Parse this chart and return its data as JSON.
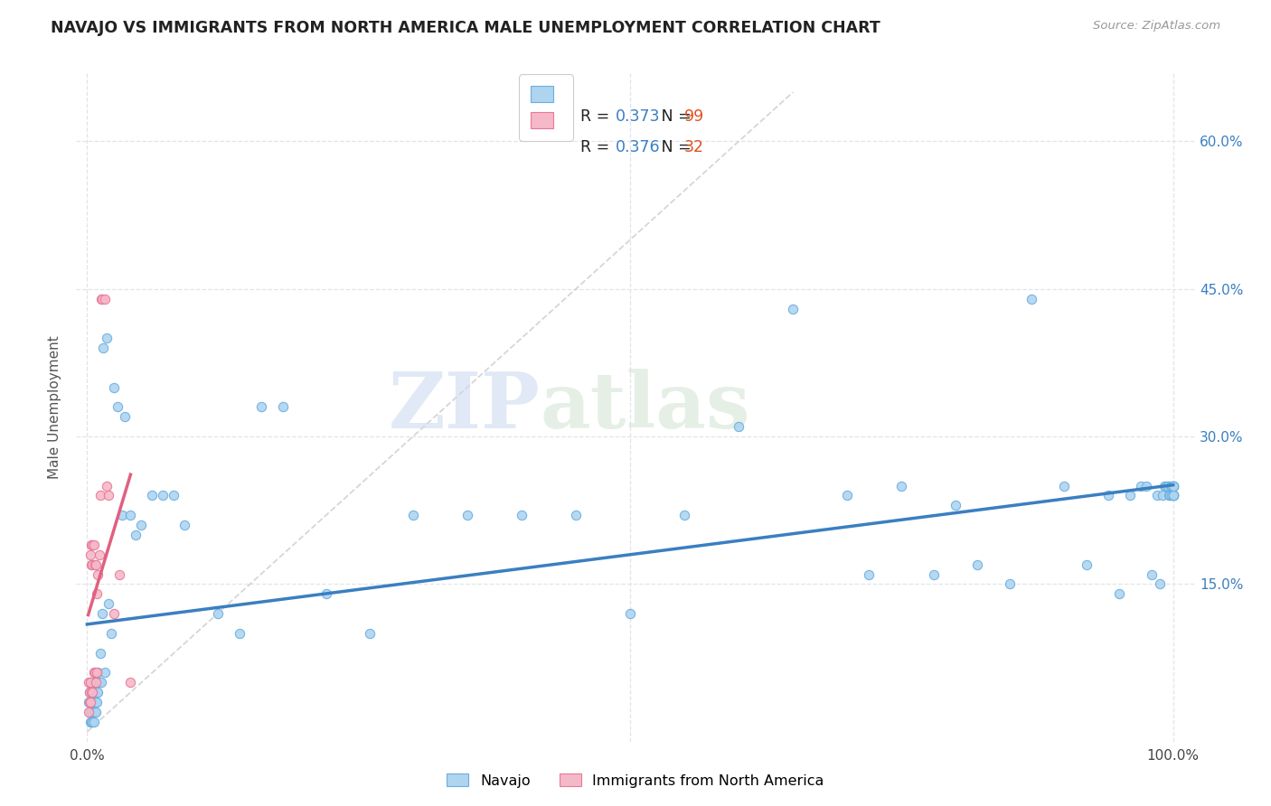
{
  "title": "NAVAJO VS IMMIGRANTS FROM NORTH AMERICA MALE UNEMPLOYMENT CORRELATION CHART",
  "source": "Source: ZipAtlas.com",
  "ylabel": "Male Unemployment",
  "watermark_zip": "ZIP",
  "watermark_atlas": "atlas",
  "navajo_R": 0.373,
  "navajo_N": 99,
  "immig_R": 0.376,
  "immig_N": 32,
  "navajo_color": "#aed4f0",
  "navajo_edge": "#6aaee0",
  "immig_color": "#f5b8c8",
  "immig_edge": "#e87898",
  "navajo_line_color": "#3a7fc1",
  "immig_line_color": "#e06080",
  "diagonal_color": "#cccccc",
  "background_color": "#ffffff",
  "grid_color": "#e0e4ea",
  "navajo_x": [
    0.001,
    0.002,
    0.002,
    0.003,
    0.003,
    0.003,
    0.003,
    0.004,
    0.004,
    0.004,
    0.004,
    0.005,
    0.005,
    0.005,
    0.005,
    0.006,
    0.006,
    0.006,
    0.006,
    0.007,
    0.007,
    0.007,
    0.008,
    0.008,
    0.008,
    0.009,
    0.009,
    0.01,
    0.01,
    0.011,
    0.012,
    0.013,
    0.014,
    0.015,
    0.016,
    0.018,
    0.02,
    0.022,
    0.025,
    0.028,
    0.032,
    0.035,
    0.04,
    0.045,
    0.05,
    0.06,
    0.07,
    0.08,
    0.09,
    0.12,
    0.14,
    0.16,
    0.18,
    0.22,
    0.26,
    0.3,
    0.35,
    0.4,
    0.45,
    0.5,
    0.55,
    0.6,
    0.65,
    0.7,
    0.72,
    0.75,
    0.78,
    0.8,
    0.82,
    0.85,
    0.87,
    0.9,
    0.92,
    0.94,
    0.95,
    0.96,
    0.97,
    0.975,
    0.98,
    0.985,
    0.988,
    0.99,
    0.992,
    0.994,
    0.995,
    0.996,
    0.997,
    0.998,
    0.999,
    0.999,
    1.0,
    1.0,
    1.0,
    1.0,
    1.0,
    1.0,
    1.0,
    1.0,
    1.0
  ],
  "navajo_y": [
    0.03,
    0.02,
    0.04,
    0.01,
    0.02,
    0.03,
    0.05,
    0.01,
    0.02,
    0.03,
    0.04,
    0.01,
    0.02,
    0.03,
    0.04,
    0.01,
    0.02,
    0.03,
    0.05,
    0.02,
    0.03,
    0.04,
    0.02,
    0.03,
    0.05,
    0.03,
    0.04,
    0.06,
    0.04,
    0.05,
    0.08,
    0.05,
    0.12,
    0.39,
    0.06,
    0.4,
    0.13,
    0.1,
    0.35,
    0.33,
    0.22,
    0.32,
    0.22,
    0.2,
    0.21,
    0.24,
    0.24,
    0.24,
    0.21,
    0.12,
    0.1,
    0.33,
    0.33,
    0.14,
    0.1,
    0.22,
    0.22,
    0.22,
    0.22,
    0.12,
    0.22,
    0.31,
    0.43,
    0.24,
    0.16,
    0.25,
    0.16,
    0.23,
    0.17,
    0.15,
    0.44,
    0.25,
    0.17,
    0.24,
    0.14,
    0.24,
    0.25,
    0.25,
    0.16,
    0.24,
    0.15,
    0.24,
    0.25,
    0.25,
    0.25,
    0.24,
    0.24,
    0.25,
    0.24,
    0.25,
    0.25,
    0.24,
    0.24,
    0.25,
    0.24,
    0.24,
    0.25,
    0.24,
    0.25
  ],
  "immig_x": [
    0.001,
    0.001,
    0.002,
    0.002,
    0.003,
    0.003,
    0.003,
    0.004,
    0.004,
    0.004,
    0.005,
    0.005,
    0.005,
    0.006,
    0.006,
    0.007,
    0.007,
    0.008,
    0.008,
    0.009,
    0.009,
    0.01,
    0.011,
    0.012,
    0.013,
    0.014,
    0.016,
    0.018,
    0.02,
    0.025,
    0.03,
    0.04
  ],
  "immig_y": [
    0.02,
    0.05,
    0.03,
    0.04,
    0.03,
    0.05,
    0.18,
    0.04,
    0.17,
    0.19,
    0.04,
    0.17,
    0.19,
    0.06,
    0.19,
    0.06,
    0.17,
    0.05,
    0.17,
    0.06,
    0.14,
    0.16,
    0.18,
    0.24,
    0.44,
    0.44,
    0.44,
    0.25,
    0.24,
    0.12,
    0.16,
    0.05
  ],
  "xlim": [
    0.0,
    1.0
  ],
  "ylim": [
    0.0,
    0.65
  ],
  "y_ticks": [
    0.0,
    0.15,
    0.3,
    0.45,
    0.6
  ],
  "y_tick_labels": [
    "",
    "15.0%",
    "30.0%",
    "45.0%",
    "60.0%"
  ],
  "x_tick_labels": [
    "0.0%",
    "100.0%"
  ]
}
